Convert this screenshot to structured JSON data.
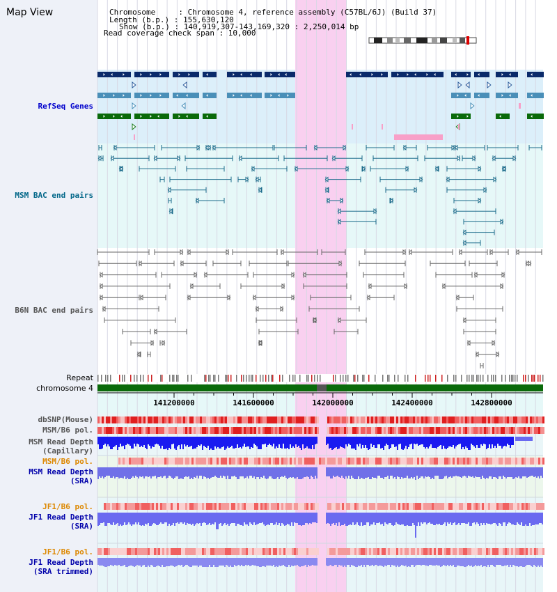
{
  "header": {
    "title": "Map View",
    "lines": [
      "Chromosome     : Chromosome 4, reference assembly (C57BL/6J) (Build 37)",
      "Length (b.p.) : 155,630,120",
      "Show (b.p.) : 140,919,307-143,169,320 : 2,250,014 bp",
      "Read coverage check span : 10,000"
    ]
  },
  "tracks": {
    "refseq": "RefSeq Genes",
    "msm_bac": "MSM BAC end pairs",
    "b6n_bac": "B6N BAC end pairs",
    "repeat": "Repeat",
    "chromosome": "chromosome 4",
    "dbsnp": "dbSNP(Mouse)",
    "msm_b6_pol_1": "MSM/B6 pol.",
    "msm_read_depth_cap": [
      "MSM Read Depth",
      "(Capillary)"
    ],
    "msm_b6_pol_2": "MSM/B6 pol.",
    "msm_read_depth_sra": [
      "MSM Read Depth",
      "(SRA)"
    ],
    "jf1_b6_pol_1": "JF1/B6 pol.",
    "jf1_read_depth_sra": [
      "JF1 Read Depth",
      "(SRA)"
    ],
    "jf1_b6_pol_2": "JF1/B6 pol.",
    "jf1_read_depth_trim": [
      "JF1 Read Depth",
      "(SRA trimmed)"
    ]
  },
  "ruler": {
    "ticks": [
      "141200000",
      "141600000",
      "142000000",
      "142400000",
      "142800000"
    ]
  },
  "colors": {
    "refseq_label": "#0000cc",
    "bac_label": "#006688",
    "b6n_label": "#555555",
    "pol_label": "#dd8800",
    "depth_label": "#0000aa",
    "highlight": "#f9d0f0",
    "refseq_bg": "#dceffa",
    "bac_bg": "#e6f8f8"
  }
}
